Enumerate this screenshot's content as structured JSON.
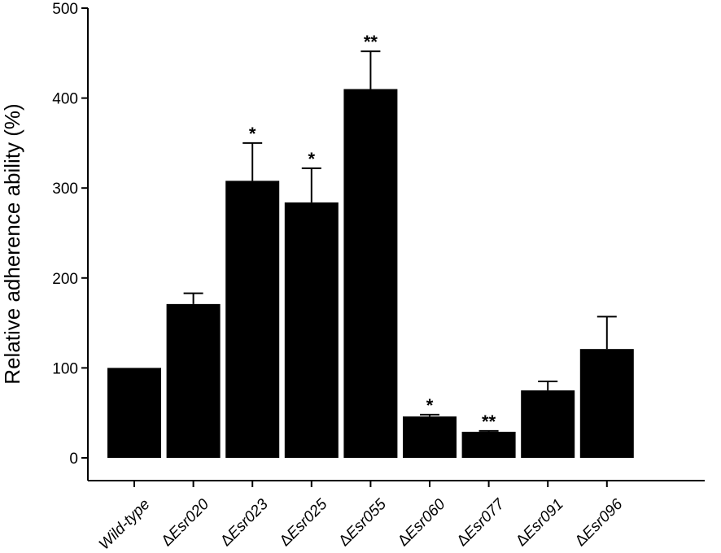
{
  "chart_data": {
    "type": "bar",
    "title": "",
    "xlabel": "",
    "ylabel": "Relative adherence ability (%)",
    "ylim": [
      0,
      500
    ],
    "yticks": [
      0,
      100,
      200,
      300,
      400,
      500
    ],
    "grid": false,
    "legend": "none",
    "bar_color": "#000000",
    "categories": [
      {
        "prefix": "",
        "name": "Wild-type"
      },
      {
        "prefix": "Δ",
        "name": "Esr020"
      },
      {
        "prefix": "Δ",
        "name": "Esr023"
      },
      {
        "prefix": "Δ",
        "name": "Esr025"
      },
      {
        "prefix": "Δ",
        "name": "Esr055"
      },
      {
        "prefix": "Δ",
        "name": "Esr060"
      },
      {
        "prefix": "Δ",
        "name": "Esr077"
      },
      {
        "prefix": "Δ",
        "name": "Esr091"
      },
      {
        "prefix": "Δ",
        "name": "Esr096"
      }
    ],
    "values": [
      100,
      171,
      308,
      284,
      410,
      46,
      29,
      75,
      121
    ],
    "errors": [
      0,
      12,
      42,
      38,
      42,
      2,
      1,
      10,
      36
    ],
    "significance": [
      "",
      "",
      "*",
      "*",
      "**",
      "*",
      "**",
      "",
      ""
    ]
  }
}
